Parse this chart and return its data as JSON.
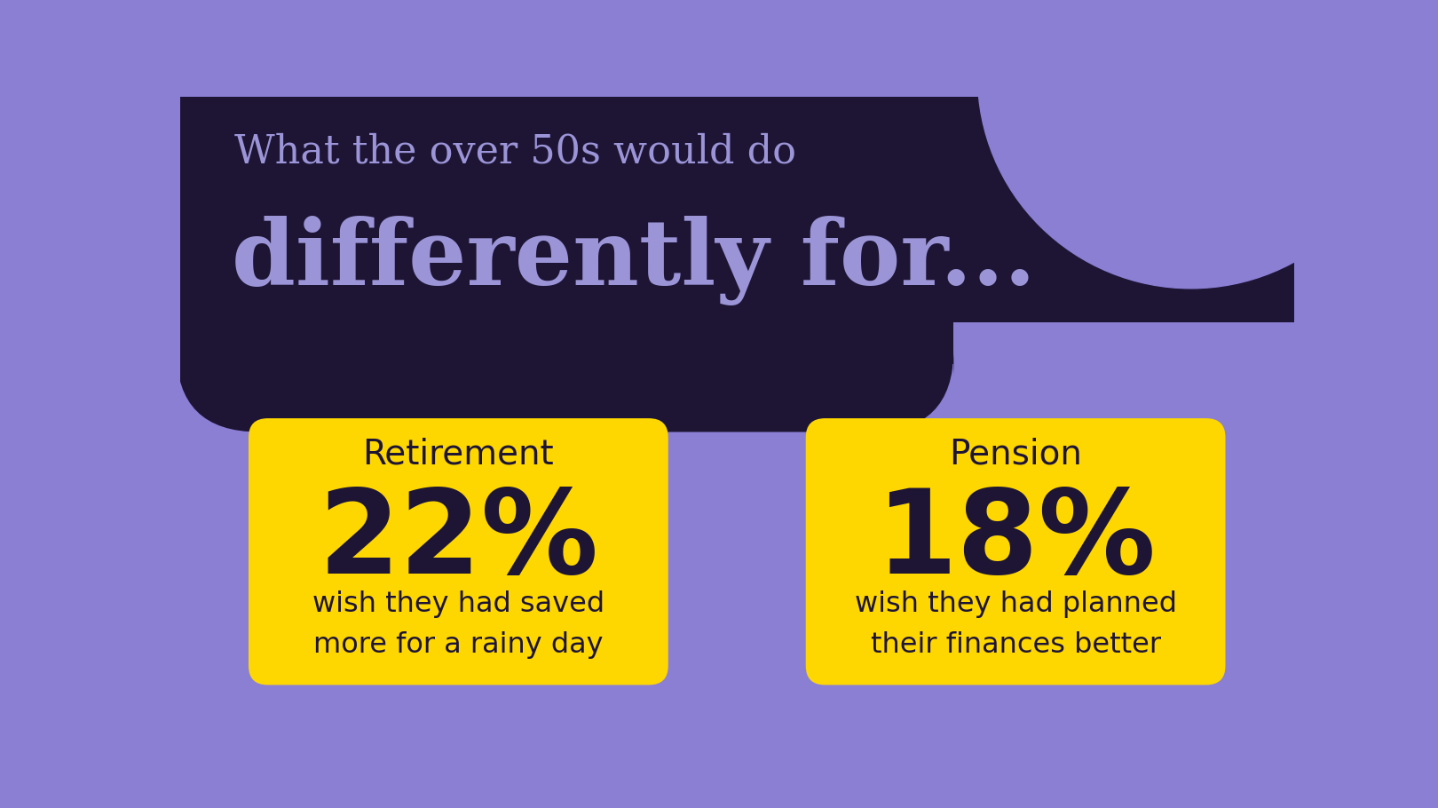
{
  "bg_color": "#8B7FD4",
  "dark_bg_color": "#1E1535",
  "title_line1": "What the over 50s would do",
  "title_line2": "differently for...",
  "title_line1_color": "#9B95D8",
  "title_line2_color": "#9B95D8",
  "box_color": "#FFD700",
  "box_text_color": "#1E1535",
  "box1_label": "Retirement",
  "box1_pct": "22%",
  "box1_desc_line1": "wish they had saved",
  "box1_desc_line2": "more for a rainy day",
  "box2_label": "Pension",
  "box2_pct": "18%",
  "box2_desc_line1": "wish they had planned",
  "box2_desc_line2": "their finances better",
  "label_fontsize": 28,
  "pct_fontsize": 95,
  "desc_fontsize": 23,
  "title1_fontsize": 32,
  "title2_fontsize": 74
}
